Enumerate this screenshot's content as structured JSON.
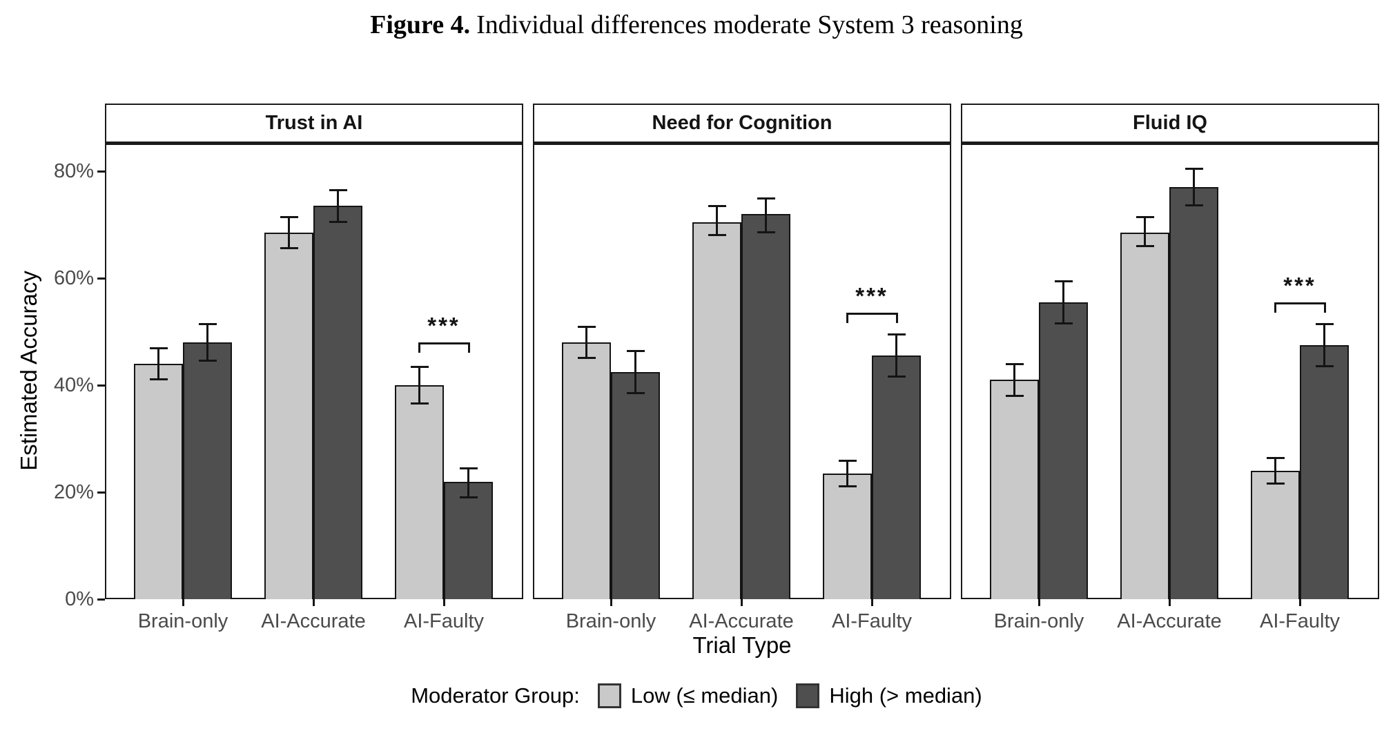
{
  "title": {
    "prefix": "Figure 4.",
    "rest": "Individual differences moderate System 3 reasoning"
  },
  "y_axis": {
    "title": "Estimated Accuracy"
  },
  "x_axis": {
    "title": "Trial Type"
  },
  "legend": {
    "title": "Moderator Group:",
    "items": [
      {
        "label": "Low (≤ median)",
        "color": "#c9c9c9"
      },
      {
        "label": "High (> median)",
        "color": "#4f4f4f"
      }
    ]
  },
  "colors": {
    "bar_low": "#c9c9c9",
    "bar_high": "#4f4f4f",
    "bar_border": "#141414",
    "axis_text": "#4a4a4a",
    "text": "#000000",
    "panel_border": "#1a1a1a",
    "background": "#ffffff"
  },
  "chart_data": {
    "type": "bar",
    "title": "Figure 4. Individual differences moderate System 3 reasoning",
    "xlabel": "Trial Type",
    "ylabel": "Estimated Accuracy",
    "ylim": [
      0,
      85
    ],
    "ytick_values": [
      0,
      20,
      40,
      60,
      80
    ],
    "ytick_labels": [
      "0%",
      "20%",
      "40%",
      "60%",
      "80%"
    ],
    "grid": false,
    "legend_position": "bottom",
    "categories": [
      "Brain-only",
      "AI-Accurate",
      "AI-Faulty"
    ],
    "series_names": [
      "Low (≤ median)",
      "High (> median)"
    ],
    "facets": [
      {
        "title": "Trust in AI",
        "series": [
          {
            "name": "Low (≤ median)",
            "values": [
              44,
              68.5,
              40
            ],
            "err_low": [
              41,
              65.5,
              36.5
            ],
            "err_high": [
              47,
              71.5,
              43.5
            ]
          },
          {
            "name": "High (> median)",
            "values": [
              48,
              73.5,
              22
            ],
            "err_low": [
              44.5,
              70.5,
              19
            ],
            "err_high": [
              51.5,
              76.5,
              24.5
            ]
          }
        ],
        "significance": {
          "category": "AI-Faulty",
          "label": "***",
          "bracket_y": 48
        }
      },
      {
        "title": "Need for Cognition",
        "series": [
          {
            "name": "Low (≤ median)",
            "values": [
              48,
              70.5,
              23.5
            ],
            "err_low": [
              45,
              68,
              21
            ],
            "err_high": [
              51,
              73.5,
              26
            ]
          },
          {
            "name": "High (> median)",
            "values": [
              42.5,
              72,
              45.5
            ],
            "err_low": [
              38.5,
              68.5,
              41.5
            ],
            "err_high": [
              46.5,
              75,
              49.5
            ]
          }
        ],
        "significance": {
          "category": "AI-Faulty",
          "label": "***",
          "bracket_y": 53.5
        }
      },
      {
        "title": "Fluid IQ",
        "series": [
          {
            "name": "Low (≤ median)",
            "values": [
              41,
              68.5,
              24
            ],
            "err_low": [
              38,
              66,
              21.5
            ],
            "err_high": [
              44,
              71.5,
              26.5
            ]
          },
          {
            "name": "High (> median)",
            "values": [
              55.5,
              77,
              47.5
            ],
            "err_low": [
              51.5,
              73.5,
              43.5
            ],
            "err_high": [
              59.5,
              80.5,
              51.5
            ]
          }
        ],
        "significance": {
          "category": "AI-Faulty",
          "label": "***",
          "bracket_y": 55.5
        }
      }
    ]
  }
}
